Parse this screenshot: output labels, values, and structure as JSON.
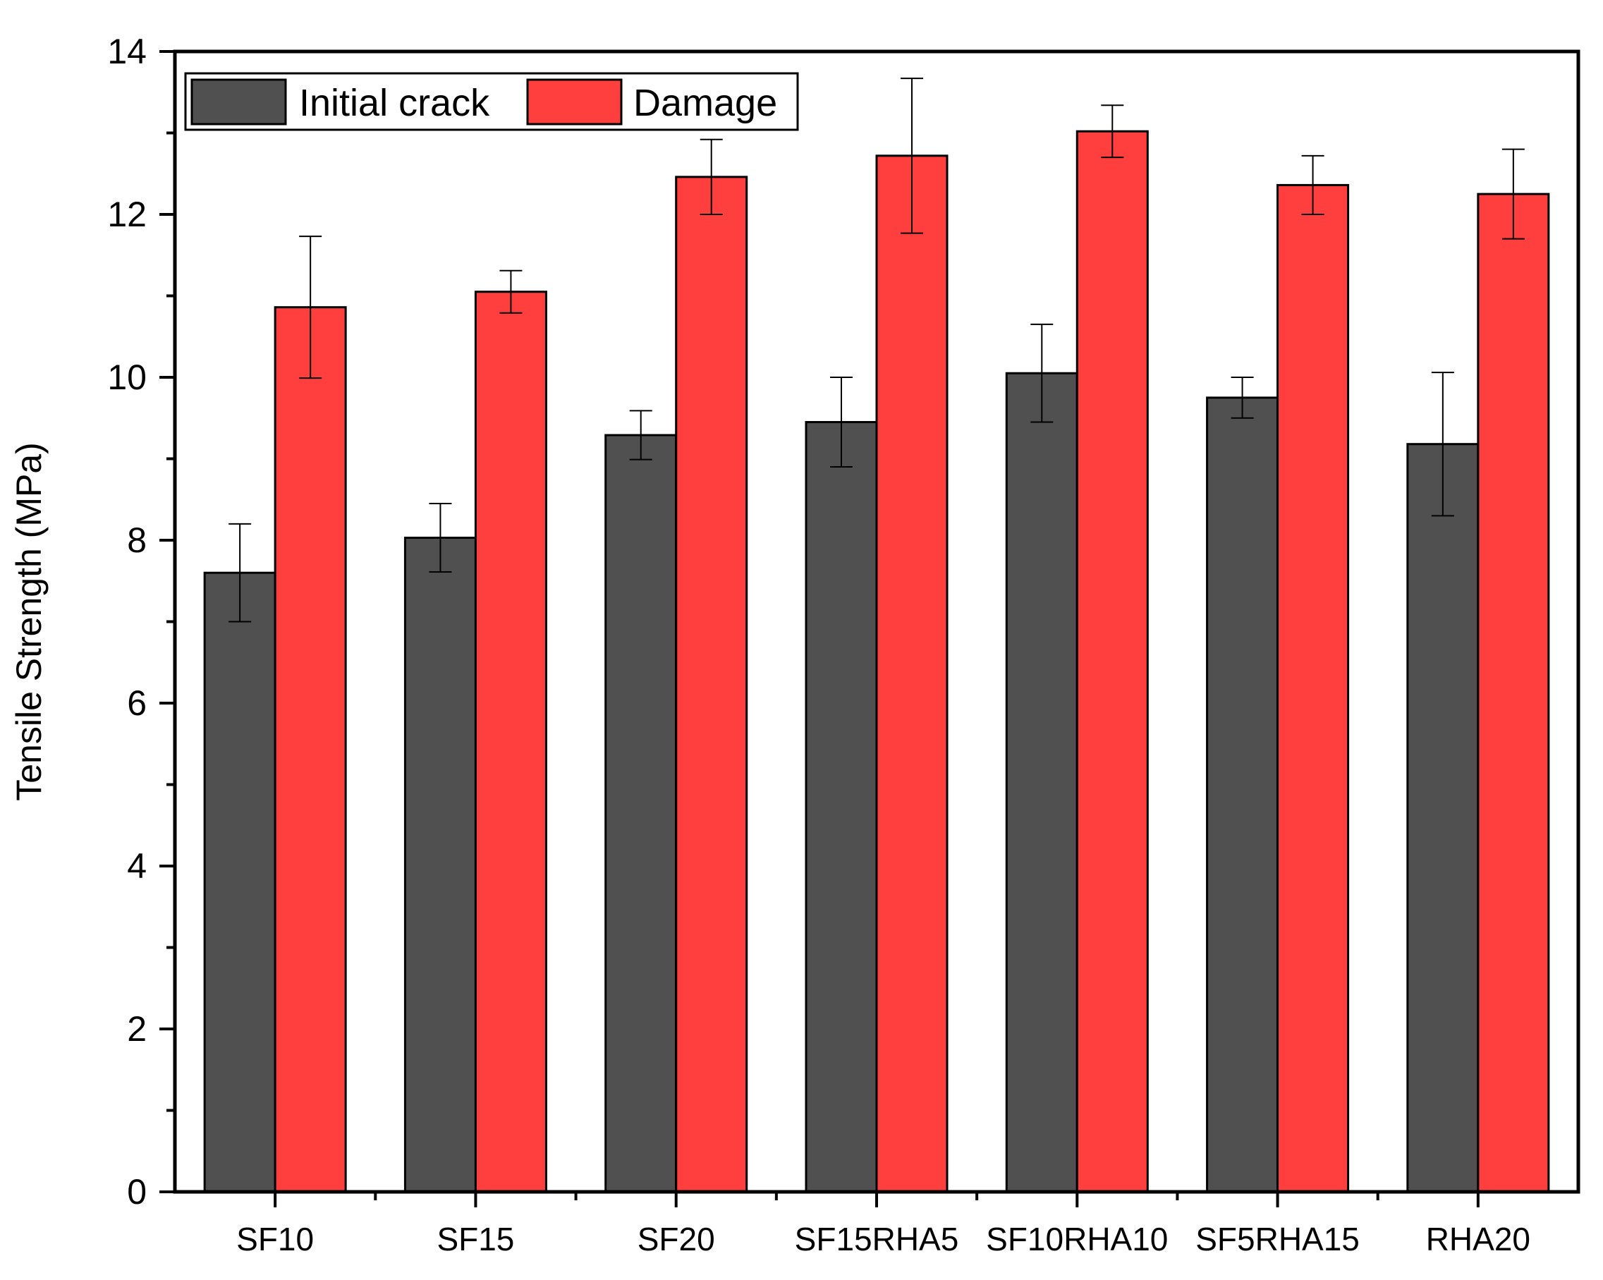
{
  "chart_data": {
    "type": "bar",
    "title": "",
    "xlabel": "",
    "ylabel": "Tensile Strength (MPa)",
    "ylim": [
      0,
      14
    ],
    "yticks": [
      0,
      2,
      4,
      6,
      8,
      10,
      12,
      14
    ],
    "categories": [
      "SF10",
      "SF15",
      "SF20",
      "SF15RHA5",
      "SF10RHA10",
      "SF5RHA15",
      "RHA20"
    ],
    "series": [
      {
        "name": "Initial crack",
        "color": "#505050",
        "values": [
          7.6,
          8.03,
          9.29,
          9.45,
          10.05,
          9.75,
          9.18
        ],
        "errors": [
          0.6,
          0.42,
          0.3,
          0.55,
          0.6,
          0.25,
          0.88
        ]
      },
      {
        "name": "Damage",
        "color": "#ff3e3e",
        "values": [
          10.86,
          11.05,
          12.46,
          12.72,
          13.02,
          12.36,
          12.25
        ],
        "errors": [
          0.87,
          0.26,
          0.46,
          0.95,
          0.32,
          0.36,
          0.55
        ]
      }
    ],
    "legend_position": "top-left",
    "grid": false
  }
}
